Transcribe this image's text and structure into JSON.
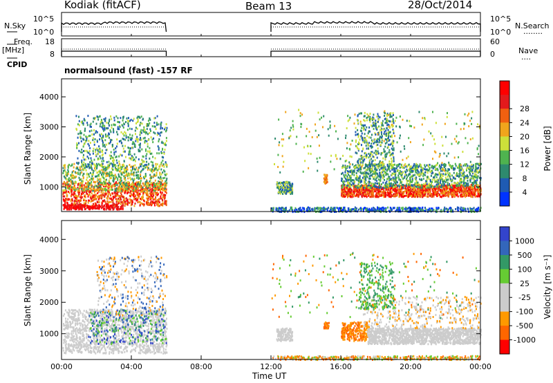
{
  "header": {
    "station": "Kodiak (fitACF)",
    "beam": "Beam 13",
    "date": "28/Oct/2014"
  },
  "labels": {
    "nsky": "N.Sky",
    "nsearch": "N.Search",
    "nsearch_dots": "........",
    "freq": "Freq.",
    "mhz": "[MHz]",
    "nave": "Nave",
    "nave_dots": "....",
    "cpid": "CPID",
    "cpid_text": "normalsound (fast) -157 RF",
    "xaxis": "Time UT",
    "power_title": "Power [dB]",
    "velocity_title": "Velocity [m s⁻¹]"
  },
  "colors": {
    "power_scale": [
      "#0033ff",
      "#1f5bb3",
      "#2e8a6e",
      "#4fb34f",
      "#cde03a",
      "#f0a51c",
      "#f06010",
      "#e31a1c",
      "#ff0000"
    ],
    "velocity_scale": [
      "#ff0000",
      "#ff6600",
      "#ff9900",
      "#cccccc",
      "#cccccc",
      "#66cc33",
      "#339966",
      "#3366bb",
      "#3344cc"
    ]
  },
  "chart_data": [
    {
      "type": "line",
      "name": "noise-panel",
      "left_ticks": [
        "10^5",
        "10^0"
      ],
      "right_ticks": [
        "10^5",
        "10^0"
      ],
      "segments": [
        [
          0,
          6
        ],
        [
          12,
          24
        ]
      ]
    },
    {
      "type": "line",
      "name": "frequency-panel",
      "left_ticks": [
        "18",
        "8"
      ],
      "right_ticks": [
        "60",
        "0"
      ],
      "segments": [
        [
          0,
          6
        ],
        [
          12,
          24
        ]
      ]
    },
    {
      "type": "heatmap",
      "name": "power-panel",
      "xlabel": "Time UT",
      "ylabel": "Slant Range [km]",
      "xlim": [
        0,
        24
      ],
      "ylim": [
        180,
        4600
      ],
      "x_ticks": [
        "00:00",
        "04:00",
        "08:00",
        "12:00",
        "16:00",
        "20:00",
        "00:00"
      ],
      "x_tick_values": [
        0,
        4,
        8,
        12,
        16,
        20,
        24
      ],
      "y_ticks": [
        "1000",
        "2000",
        "3000",
        "4000"
      ],
      "y_tick_values": [
        1000,
        2000,
        3000,
        4000
      ],
      "colorbar_ticks": [
        "4",
        "8",
        "12",
        "16",
        "20",
        "24",
        "28"
      ],
      "colorbar_title": "Power [dB]"
    },
    {
      "type": "heatmap",
      "name": "velocity-panel",
      "xlabel": "Time UT",
      "ylabel": "Slant Range [km]",
      "xlim": [
        0,
        24
      ],
      "ylim": [
        180,
        4600
      ],
      "x_ticks": [
        "00:00",
        "04:00",
        "08:00",
        "12:00",
        "16:00",
        "20:00",
        "00:00"
      ],
      "x_tick_values": [
        0,
        4,
        8,
        12,
        16,
        20,
        24
      ],
      "y_ticks": [
        "1000",
        "2000",
        "3000",
        "4000"
      ],
      "y_tick_values": [
        1000,
        2000,
        3000,
        4000
      ],
      "colorbar_ticks": [
        "1000",
        "500",
        "100",
        "25",
        "-25",
        "-100",
        "-500",
        "-1000"
      ],
      "colorbar_title": "Velocity [m s⁻¹]"
    }
  ]
}
